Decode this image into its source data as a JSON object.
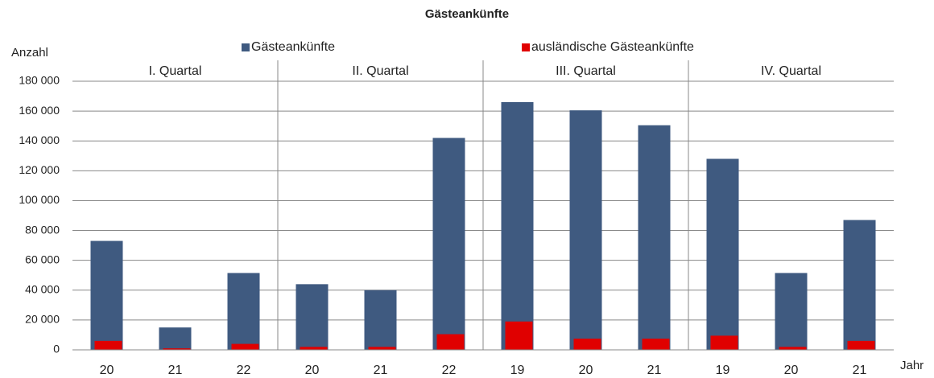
{
  "chart_data": {
    "type": "bar",
    "title": "Gästeankünfte",
    "y_label": "Anzahl",
    "x_label": "Jahr",
    "categories": [
      "20",
      "21",
      "22",
      "20",
      "21",
      "22",
      "19",
      "20",
      "21",
      "19",
      "20",
      "21"
    ],
    "groups": [
      "I. Quartal",
      "II. Quartal",
      "III. Quartal",
      "IV. Quartal"
    ],
    "series": [
      {
        "name": "Gästeankünfte",
        "color": "#3f5a80",
        "values": [
          73000,
          15000,
          51500,
          44000,
          40000,
          142000,
          166000,
          160500,
          150500,
          128000,
          51500,
          87000
        ]
      },
      {
        "name": "ausländische Gästeankünfte",
        "color": "#e00000",
        "values": [
          6000,
          1000,
          4000,
          2000,
          2000,
          10500,
          19000,
          7500,
          7500,
          9500,
          2000,
          6000
        ]
      }
    ],
    "ylim": [
      0,
      180000
    ],
    "yticks": [
      0,
      {
        "value": 20000,
        "label": "20 000"
      },
      {
        "value": 40000,
        "label": "40 000"
      },
      {
        "value": 60000,
        "label": "60 000"
      },
      {
        "value": 80000,
        "label": "80 000"
      },
      {
        "value": 100000,
        "label": "100 000"
      },
      {
        "value": 120000,
        "label": "120 000"
      },
      {
        "value": 140000,
        "label": "140 000"
      },
      {
        "value": 160000,
        "label": "160 000"
      },
      {
        "value": 180000,
        "label": "180 000"
      }
    ],
    "grid": true
  }
}
